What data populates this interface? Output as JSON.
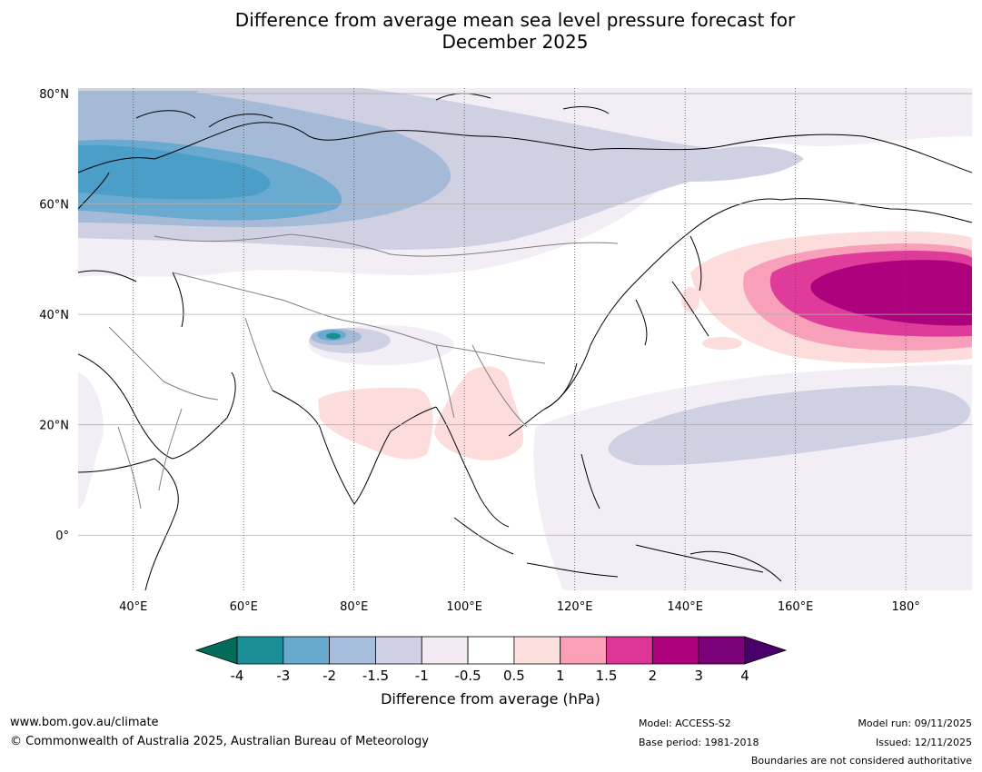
{
  "title": {
    "line1": "Difference from average mean sea level pressure forecast for",
    "line2": "December 2025"
  },
  "map": {
    "lon_range": [
      30,
      192
    ],
    "lat_range": [
      -10,
      81
    ],
    "latitude_labels": [
      "80°N",
      "60°N",
      "40°N",
      "20°N",
      "0°"
    ],
    "longitude_labels": [
      "40°E",
      "60°E",
      "80°E",
      "100°E",
      "120°E",
      "140°E",
      "160°E",
      "180°"
    ],
    "latitude_values": [
      80,
      60,
      40,
      20,
      0
    ],
    "longitude_values": [
      40,
      60,
      80,
      100,
      120,
      140,
      160,
      180
    ],
    "anomaly_regions": [
      {
        "name": "Northern Eurasia low",
        "level": "-0.5",
        "color": "#f3edf5"
      },
      {
        "name": "Siberia low",
        "level": "-1",
        "color": "#cfd1e3"
      },
      {
        "name": "Western Siberia low",
        "level": "-1.5",
        "color": "#a5bad6"
      },
      {
        "name": "Western Siberia core",
        "level": "-2",
        "color": "#6aaad0"
      },
      {
        "name": "Kara Sea core",
        "level": "-3",
        "color": "#4b9ec7"
      },
      {
        "name": "North Pacific high",
        "level": "0.5",
        "color": "#fddcdc"
      },
      {
        "name": "North Pacific high",
        "level": "1",
        "color": "#f8a0b9"
      },
      {
        "name": "North Pacific high",
        "level": "1.5",
        "color": "#de3b9a"
      },
      {
        "name": "North Pacific core",
        "level": "2",
        "color": "#ad017e"
      },
      {
        "name": "Subtropical Pacific low",
        "level": "-1",
        "color": "#cfd1e3"
      },
      {
        "name": "India high",
        "level": "0.5",
        "color": "#fddcdc"
      },
      {
        "name": "Indochina high",
        "level": "0.5",
        "color": "#fddcdc"
      },
      {
        "name": "Tibetan Plateau low",
        "level": "-4",
        "color": "#1b8f8f"
      }
    ]
  },
  "colorbar": {
    "title": "Difference from average (hPa)",
    "labels": [
      "-4",
      "-3",
      "-2",
      "-1.5",
      "-1",
      "-0.5",
      "0.5",
      "1",
      "1.5",
      "2",
      "3",
      "4"
    ],
    "colors": [
      "#1b8f97",
      "#67a9cf",
      "#a6bddb",
      "#d0d1e6",
      "#f3eaf4",
      "#ffffff",
      "#fde0dd",
      "#fa9fb5",
      "#dd3497",
      "#ae017e",
      "#7a0177"
    ],
    "under_color": "#016c59",
    "over_color": "#49006a"
  },
  "footer": {
    "website": "www.bom.gov.au/climate",
    "copyright": "© Commonwealth of Australia 2025, Australian Bureau of Meteorology",
    "model": "Model: ACCESS-S2",
    "base_period": "Base period: 1981-2018",
    "model_run": "Model run: 09/11/2025",
    "issued": "Issued: 12/11/2025",
    "disclaimer": "Boundaries are not considered authoritative"
  }
}
